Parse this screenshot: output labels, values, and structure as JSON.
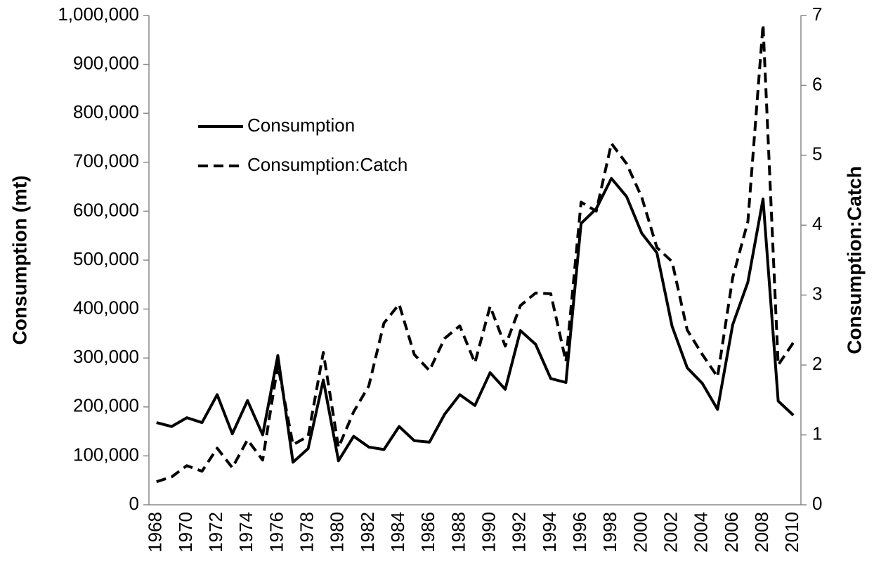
{
  "chart_data": {
    "type": "line",
    "y_label": "Consumption  (mt)",
    "y2_label": "Consumption:Catch",
    "categories": [
      "1968",
      null,
      "1970",
      null,
      "1972",
      null,
      "1974",
      null,
      "1976",
      null,
      "1978",
      null,
      "1980",
      null,
      "1982",
      null,
      "1984",
      null,
      "1986",
      null,
      "1988",
      null,
      "1990",
      null,
      "1992",
      null,
      "1994",
      null,
      "1996",
      null,
      "1998",
      null,
      "2000",
      null,
      "2002",
      null,
      "2004",
      null,
      "2006",
      null,
      "2008",
      null,
      "2010"
    ],
    "series": [
      {
        "name": "Consumption",
        "color": "#000000",
        "linestyle": "solid",
        "values": [
          168000,
          160000,
          178000,
          168000,
          225000,
          145000,
          213000,
          143000,
          305000,
          87000,
          115000,
          255000,
          90000,
          140000,
          118000,
          113000,
          160000,
          131000,
          128000,
          185000,
          225000,
          203000,
          270000,
          236000,
          356000,
          328000,
          258000,
          250000,
          575000,
          605000,
          667000,
          630000,
          555000,
          515000,
          365000,
          280000,
          248000,
          195000,
          368000,
          455000,
          625000,
          212000,
          183000
        ]
      },
      {
        "name": "Consumption:Catch",
        "color": "#000000",
        "linestyle": "dashed",
        "axis": "y2",
        "values": [
          0.33,
          0.4,
          0.56,
          0.48,
          0.81,
          0.53,
          0.93,
          0.64,
          2.0,
          0.86,
          0.98,
          2.18,
          0.82,
          1.33,
          1.7,
          2.6,
          2.87,
          2.15,
          1.92,
          2.38,
          2.56,
          2.03,
          2.84,
          2.27,
          2.85,
          3.03,
          3.02,
          2.05,
          4.33,
          4.2,
          5.17,
          4.88,
          4.4,
          3.68,
          3.48,
          2.5,
          2.15,
          1.83,
          3.25,
          4.05,
          6.87,
          2.0,
          2.32
        ]
      }
    ],
    "ylim": [
      0,
      1000000
    ],
    "yticks": [
      0,
      {
        "value": 100000,
        "label": "100,000"
      },
      {
        "value": 200000,
        "label": "200,000"
      },
      {
        "value": 300000,
        "label": "300,000"
      },
      {
        "value": 400000,
        "label": "400,000"
      },
      {
        "value": 500000,
        "label": "500,000"
      },
      {
        "value": 600000,
        "label": "600,000"
      },
      {
        "value": 700000,
        "label": "700,000"
      },
      {
        "value": 800000,
        "label": "800,000"
      },
      {
        "value": 900000,
        "label": "900,000"
      },
      {
        "value": 1000000,
        "label": "1,000,000"
      }
    ],
    "y2lim": [
      0,
      7
    ],
    "y2ticks": [
      0,
      1,
      2,
      3,
      4,
      5,
      6,
      7
    ],
    "grid": false,
    "legend": "upper left"
  }
}
